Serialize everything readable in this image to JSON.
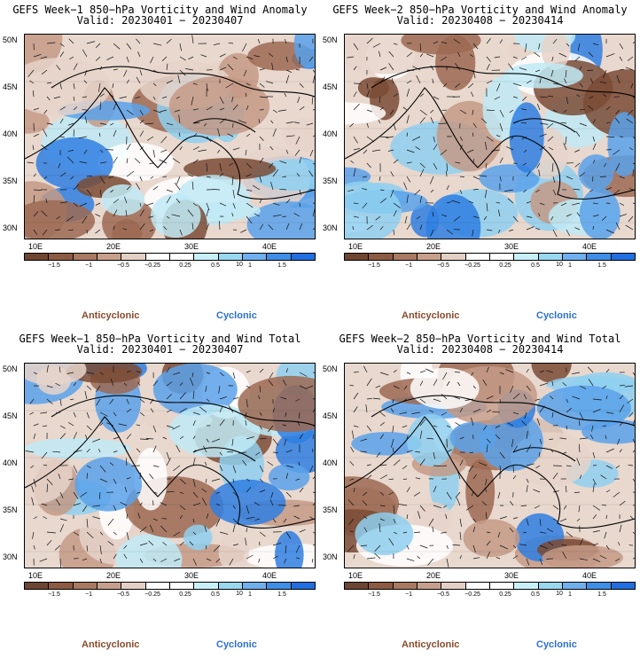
{
  "panels": [
    {
      "title": "GEFS Week−1 850−hPa Vorticity and Wind Anomaly",
      "valid": "Valid: 20230401 − 20230407"
    },
    {
      "title": "GEFS Week−2 850−hPa Vorticity and Wind Anomaly",
      "valid": "Valid: 20230408 − 20230414"
    },
    {
      "title": "GEFS Week−1 850−hPa Vorticity and Wind Total",
      "valid": "Valid: 20230401 − 20230407"
    },
    {
      "title": "GEFS Week−2 850−hPa Vorticity and Wind Total",
      "valid": "Valid: 20230408 − 20230414"
    }
  ],
  "lat_labels": [
    "50N",
    "45N",
    "40N",
    "35N",
    "30N"
  ],
  "lon_labels": [
    "10E",
    "20E",
    "30E",
    "40E"
  ],
  "colorbar": {
    "labels": [
      "−1.5",
      "−1",
      "−0.5",
      "−0.25",
      "0.25",
      "0.5",
      "1",
      "1.5"
    ],
    "scale_note": "10",
    "colors": [
      "#6e4530",
      "#8c5a42",
      "#a97a62",
      "#c7a08c",
      "#e3cfc4",
      "#ffffff",
      "#ffffff",
      "#c8f0f8",
      "#9ad8f0",
      "#6fb0ee",
      "#3f8ee8",
      "#1f6fe0"
    ]
  },
  "legend": {
    "anticyclonic": "Anticyclonic",
    "cyclonic": "Cyclonic"
  },
  "colors": {
    "anticyclonic_text": "#8b4a2b",
    "cyclonic_text": "#2a6fd6",
    "brown": "#a0735b",
    "blue": "#4a90e2"
  }
}
